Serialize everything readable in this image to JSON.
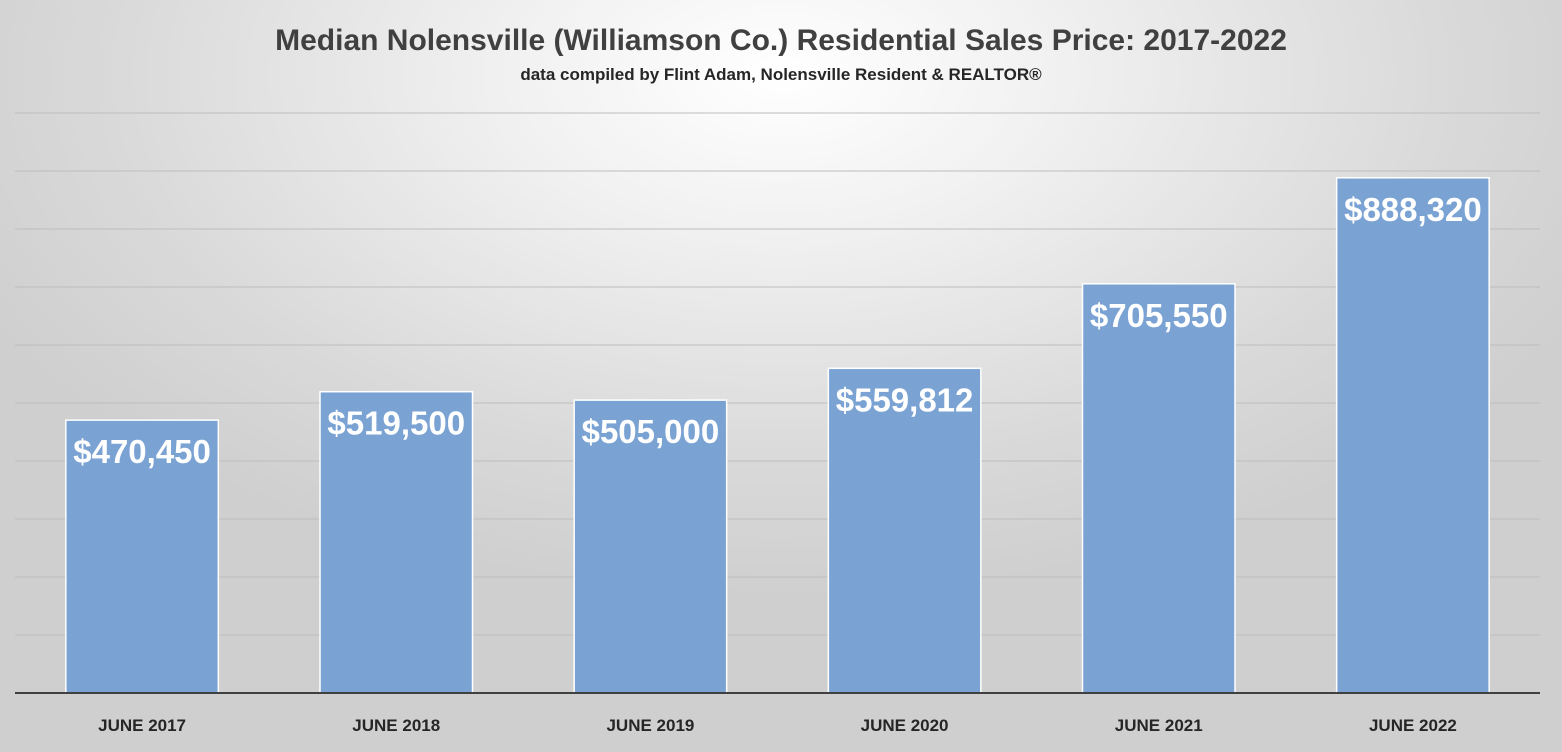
{
  "chart_data": {
    "type": "bar",
    "title": "Median Nolensville (Williamson Co.) Residential Sales Price: 2017-2022",
    "subtitle": "data compiled by Flint Adam, Nolensville Resident & REALTOR®",
    "xlabel": "",
    "ylabel": "",
    "categories": [
      "JUNE 2017",
      "JUNE 2018",
      "JUNE 2019",
      "JUNE 2020",
      "JUNE 2021",
      "JUNE 2022"
    ],
    "values": [
      470450,
      519500,
      505000,
      559812,
      705550,
      888320
    ],
    "data_labels": [
      "$470,450",
      "$519,500",
      "$505,000",
      "$559,812",
      "$705,550",
      "$888,320"
    ],
    "ylim": [
      0,
      1000000
    ],
    "grid": true,
    "y_tick_labels_shown": false,
    "legend": "none",
    "colors": {
      "bar": "#7aa3d4",
      "bar_outline": "#ffffff",
      "data_label": "#ffffff",
      "title": "#404040",
      "gridline": "#bdbdbd",
      "axis": "#404040"
    }
  }
}
